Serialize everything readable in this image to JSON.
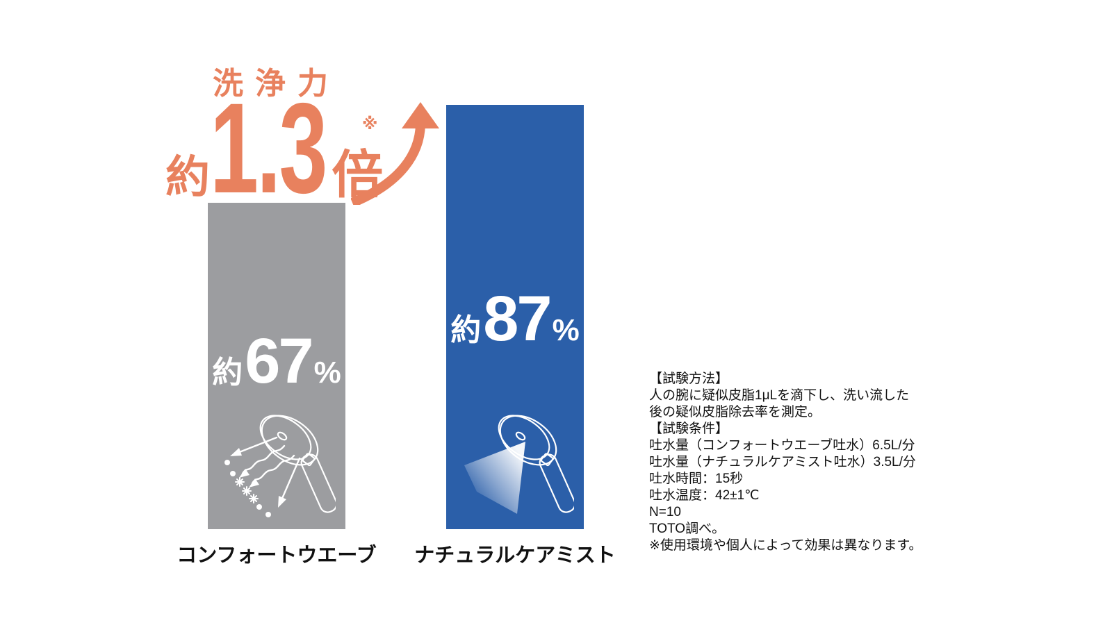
{
  "colors": {
    "accent_orange": "#E8815E",
    "bar_gray": "#9C9DA0",
    "bar_blue": "#2B5FA9",
    "value_text": "#FFFFFF",
    "body_text": "#111111"
  },
  "headline": {
    "label": "洗浄力",
    "prefix": "約",
    "value": "1.3",
    "suffix": "倍",
    "note_mark": "※"
  },
  "chart_data": {
    "type": "bar",
    "title": "洗浄力",
    "annotation": "約1.3倍",
    "annotation_note_mark": "※",
    "categories": [
      "コンフォートウエーブ",
      "ナチュラルケアミスト"
    ],
    "values": [
      67,
      87
    ],
    "unit": "%",
    "value_labels": [
      {
        "prefix": "約",
        "number": "67",
        "unit": "%"
      },
      {
        "prefix": "約",
        "number": "87",
        "unit": "%"
      }
    ],
    "bar_colors": [
      "#9C9DA0",
      "#2B5FA9"
    ],
    "value_label_color": "#FFFFFF",
    "ylim": [
      0,
      100
    ],
    "grid": false,
    "legend": false,
    "icons": [
      "shower-head-wave-spray-icon",
      "shower-head-mist-spray-icon"
    ]
  },
  "notes": {
    "lines": [
      "【試験方法】",
      "人の腕に疑似皮脂1μLを滴下し、洗い流した",
      "後の疑似皮脂除去率を測定。",
      "【試験条件】",
      "吐水量（コンフォートウエーブ吐水）6.5L/分",
      "吐水量（ナチュラルケアミスト吐水）3.5L/分",
      "吐水時間：15秒",
      "吐水温度：42±1℃",
      "N=10",
      "TOTO調べ。",
      "※使用環境や個人によって効果は異なります。"
    ]
  }
}
